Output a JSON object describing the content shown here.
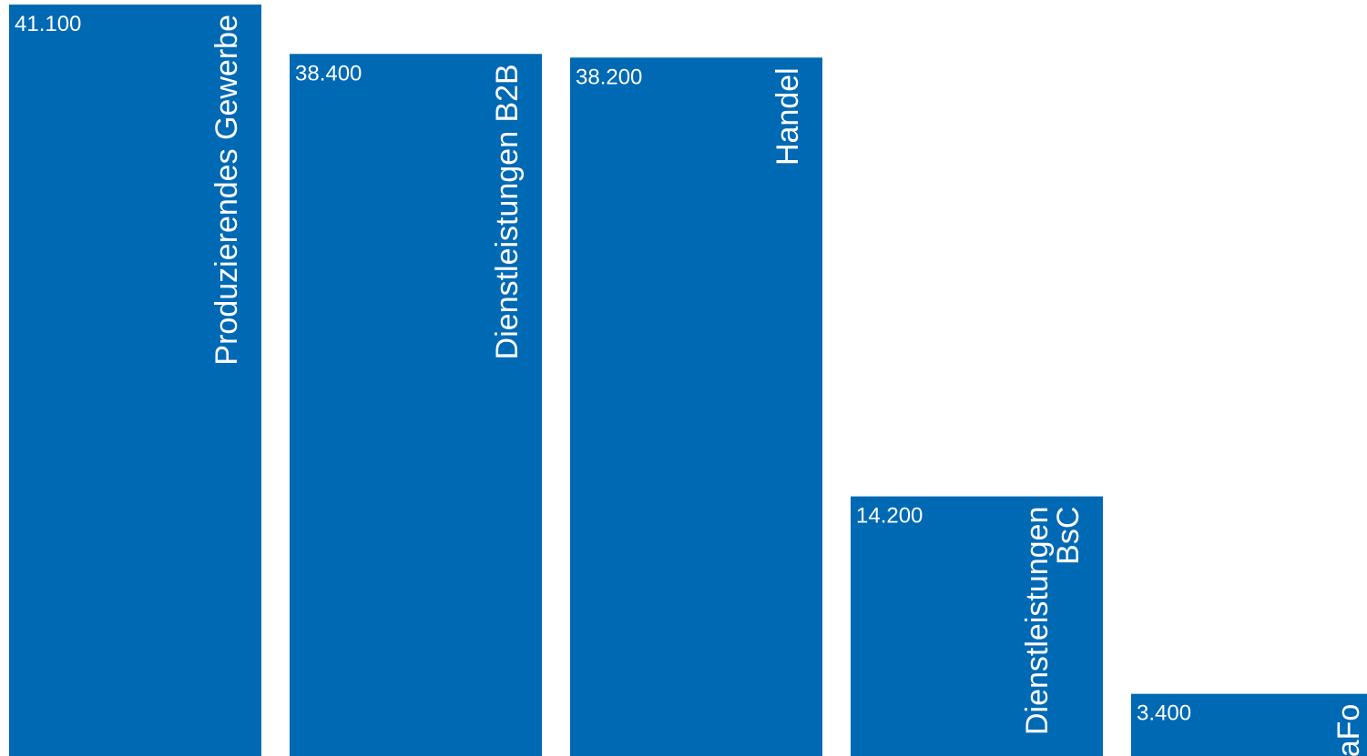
{
  "chart_data": {
    "type": "bar",
    "title": "",
    "xlabel": "",
    "ylabel": "",
    "categories": [
      [
        "Produzierendes Gewerbe"
      ],
      [
        "Dienstleistungen B2B"
      ],
      [
        "Handel"
      ],
      [
        "Dienstleistungen",
        "BsC"
      ],
      [
        "LaFo"
      ]
    ],
    "values": [
      41100,
      38400,
      38200,
      14200,
      3400
    ],
    "value_labels": [
      "41.100",
      "38.400",
      "38.200",
      "14.200",
      "3.400"
    ],
    "ylim": [
      0,
      41100
    ],
    "grid": false,
    "legend": "none",
    "colors": {
      "bar": "#0069b4",
      "text": "#ffffff",
      "background": "#ffffff"
    }
  }
}
